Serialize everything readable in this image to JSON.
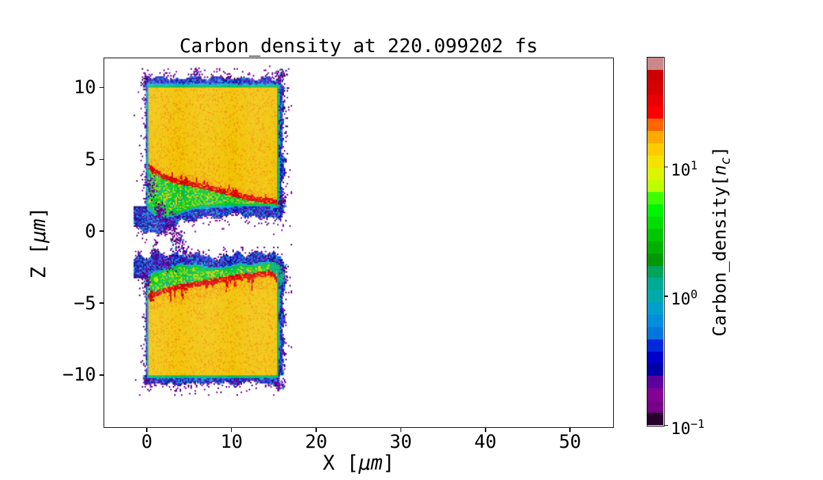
{
  "title": "Carbon_density at 220.099202 fs",
  "axes": {
    "xlabel_prefix": "X [",
    "xlabel_unit": "μm",
    "xlabel_suffix": "]",
    "ylabel_prefix": "Z [",
    "ylabel_unit": "μm",
    "ylabel_suffix": "]",
    "xlim": [
      -5,
      55.05
    ],
    "ylim": [
      -13.6,
      12.0
    ],
    "xticks": [
      {
        "value": 0,
        "label": "0"
      },
      {
        "value": 10,
        "label": "10"
      },
      {
        "value": 20,
        "label": "20"
      },
      {
        "value": 30,
        "label": "30"
      },
      {
        "value": 40,
        "label": "40"
      },
      {
        "value": 50,
        "label": "50"
      }
    ],
    "yticks": [
      {
        "value": 10,
        "label": "10"
      },
      {
        "value": 5,
        "label": "5"
      },
      {
        "value": 0,
        "label": "0"
      },
      {
        "value": -5,
        "label": "−5"
      },
      {
        "value": -10,
        "label": "−10"
      }
    ]
  },
  "colorbar": {
    "label_prefix": "Carbon_density[",
    "label_var": "n",
    "label_sub": "c",
    "label_suffix": "]",
    "scale": "log",
    "vmin_nc": 0.1,
    "vmax_nc": 70,
    "bands": 30,
    "ticks": [
      {
        "value": 10,
        "base": "10",
        "exp": "1"
      },
      {
        "value": 1,
        "base": "10",
        "exp": "0"
      },
      {
        "value": 0.1,
        "base": "10",
        "exp": "−1"
      }
    ],
    "colormap_name": "nipy_spectral",
    "colormap_stops": [
      [
        0.0,
        [
          0,
          0,
          0
        ]
      ],
      [
        0.05,
        [
          119,
          0,
          136
        ]
      ],
      [
        0.1,
        [
          136,
          0,
          153
        ]
      ],
      [
        0.15,
        [
          0,
          0,
          170
        ]
      ],
      [
        0.2,
        [
          0,
          0,
          221
        ]
      ],
      [
        0.25,
        [
          0,
          119,
          221
        ]
      ],
      [
        0.3,
        [
          0,
          153,
          221
        ]
      ],
      [
        0.35,
        [
          0,
          170,
          170
        ]
      ],
      [
        0.4,
        [
          0,
          170,
          136
        ]
      ],
      [
        0.45,
        [
          0,
          153,
          0
        ]
      ],
      [
        0.5,
        [
          0,
          187,
          0
        ]
      ],
      [
        0.55,
        [
          0,
          221,
          0
        ]
      ],
      [
        0.6,
        [
          0,
          255,
          0
        ]
      ],
      [
        0.65,
        [
          187,
          255,
          0
        ]
      ],
      [
        0.7,
        [
          238,
          238,
          0
        ]
      ],
      [
        0.75,
        [
          255,
          204,
          0
        ]
      ],
      [
        0.8,
        [
          255,
          153,
          0
        ]
      ],
      [
        0.85,
        [
          255,
          0,
          0
        ]
      ],
      [
        0.9,
        [
          221,
          0,
          0
        ]
      ],
      [
        0.95,
        [
          204,
          0,
          0
        ]
      ],
      [
        1.0,
        [
          204,
          204,
          204
        ]
      ]
    ]
  },
  "chart_data": {
    "type": "heatmap",
    "title": "Carbon_density at 220.099202 fs",
    "xlabel": "X [μm]",
    "ylabel": "Z [μm]",
    "xlim": [
      -5,
      55.05
    ],
    "ylim": [
      -13.6,
      12.0
    ],
    "value_scale": "log",
    "value_range_nc": [
      0.1,
      70
    ],
    "core_density_nc": 14,
    "structures": [
      {
        "name": "upper-slab",
        "xl": 0.25,
        "xr": 15.45,
        "back_z": 10.0,
        "front": "bottom",
        "streak": [
          [
            0.3,
            4.5
          ],
          [
            1,
            4.15
          ],
          [
            2,
            3.8
          ],
          [
            3,
            3.55
          ],
          [
            4,
            3.4
          ],
          [
            5,
            3.3
          ],
          [
            6,
            3.18
          ],
          [
            7,
            3.05
          ],
          [
            8,
            2.9
          ],
          [
            9,
            2.75
          ],
          [
            10,
            2.6
          ],
          [
            11,
            2.45
          ],
          [
            12,
            2.3
          ],
          [
            13,
            2.2
          ],
          [
            14,
            2.1
          ],
          [
            14.8,
            2.05
          ],
          [
            15.4,
            2.0
          ]
        ],
        "boundary": [
          [
            0.3,
            1.7
          ],
          [
            0.8,
            1.4
          ],
          [
            1.5,
            1.15
          ],
          [
            2.5,
            1.1
          ],
          [
            3.5,
            1.3
          ],
          [
            4.5,
            1.55
          ],
          [
            5.5,
            1.7
          ],
          [
            6.5,
            1.8
          ],
          [
            8,
            1.85
          ],
          [
            10,
            1.9
          ],
          [
            12,
            1.95
          ],
          [
            14,
            1.95
          ],
          [
            15.4,
            1.85
          ]
        ],
        "bright_spot": [
          1.4,
          1.85,
          0.5
        ]
      },
      {
        "name": "lower-slab",
        "xl": 0.25,
        "xr": 15.45,
        "back_z": -10.0,
        "front": "top",
        "streak": [
          [
            0.3,
            -4.55
          ],
          [
            0.8,
            -4.45
          ],
          [
            1.5,
            -4.25
          ],
          [
            2.5,
            -4.05
          ],
          [
            3.5,
            -3.9
          ],
          [
            4.5,
            -3.8
          ],
          [
            5.5,
            -3.7
          ],
          [
            6.5,
            -3.6
          ],
          [
            7.5,
            -3.5
          ],
          [
            8.5,
            -3.4
          ],
          [
            9.5,
            -3.3
          ],
          [
            10.5,
            -3.2
          ],
          [
            11.5,
            -3.12
          ],
          [
            12.5,
            -3.05
          ],
          [
            13.5,
            -3.0
          ],
          [
            14.5,
            -2.92
          ],
          [
            15.0,
            -3.0
          ],
          [
            15.4,
            -3.4
          ]
        ],
        "boundary": [
          [
            0.3,
            -3.3
          ],
          [
            1,
            -3.0
          ],
          [
            2,
            -2.9
          ],
          [
            3,
            -2.6
          ],
          [
            4,
            -2.45
          ],
          [
            5,
            -2.6
          ],
          [
            6,
            -2.5
          ],
          [
            7,
            -2.7
          ],
          [
            8,
            -2.75
          ],
          [
            9,
            -2.7
          ],
          [
            10,
            -2.6
          ],
          [
            11,
            -2.45
          ],
          [
            12,
            -2.55
          ],
          [
            13,
            -2.5
          ],
          [
            14,
            -2.35
          ],
          [
            15,
            -2.4
          ],
          [
            15.5,
            -2.8
          ]
        ],
        "bright_spot": [
          1.1,
          -3.35,
          0.5
        ]
      }
    ],
    "sprays": [
      {
        "cx": 1.6,
        "cz": 1.35,
        "rx": 0.8,
        "rz": 0.75,
        "n": 70,
        "palette": "purple"
      },
      {
        "cx": 2.7,
        "cz": 0.45,
        "rx": 1.1,
        "rz": 0.95,
        "n": 95,
        "palette": "purple"
      },
      {
        "cx": 3.7,
        "cz": -0.6,
        "rx": 1.2,
        "rz": 0.85,
        "n": 75,
        "palette": "purple"
      },
      {
        "cx": 4.7,
        "cz": -1.55,
        "rx": 1.1,
        "rz": 0.6,
        "n": 45,
        "palette": "purple"
      },
      {
        "cx": 2.3,
        "cz": -2.3,
        "rx": 1.3,
        "rz": 0.7,
        "n": 55,
        "palette": "purple"
      },
      {
        "cx": 1.0,
        "cz": -1.5,
        "rx": 0.5,
        "rz": 0.9,
        "n": 30,
        "palette": "purple"
      },
      {
        "cx": 0.5,
        "cz": 3.1,
        "rx": 0.8,
        "rz": 1.1,
        "n": 55,
        "palette": "purple"
      },
      {
        "cx": -0.1,
        "cz": -3.3,
        "rx": 0.8,
        "rz": 1.1,
        "n": 60,
        "palette": "purple"
      },
      {
        "cx": 5.9,
        "cz": 10.9,
        "rx": 0.6,
        "rz": 0.5,
        "n": 22,
        "palette": "purple"
      },
      {
        "cx": 9.8,
        "cz": 10.7,
        "rx": 0.4,
        "rz": 0.3,
        "n": 12,
        "palette": "purple"
      },
      {
        "cx": 15.9,
        "cz": 10.8,
        "rx": 0.8,
        "rz": 0.55,
        "n": 50,
        "palette": "purple"
      },
      {
        "cx": -0.05,
        "cz": 10.55,
        "rx": 0.45,
        "rz": 0.4,
        "n": 22,
        "palette": "purple"
      },
      {
        "cx": 10.5,
        "cz": -10.55,
        "rx": 0.7,
        "rz": 0.35,
        "n": 26,
        "palette": "purple"
      },
      {
        "cx": 15.7,
        "cz": -10.75,
        "rx": 0.8,
        "rz": 0.5,
        "n": 50,
        "palette": "purple"
      },
      {
        "cx": 0.0,
        "cz": -10.5,
        "rx": 0.5,
        "rz": 0.35,
        "n": 20,
        "palette": "purple"
      },
      {
        "cx": 16.3,
        "cz": -2.8,
        "rx": 0.6,
        "rz": 0.7,
        "n": 40,
        "palette": "purple"
      },
      {
        "cx": 16.0,
        "cz": 2.1,
        "rx": 0.55,
        "rz": 0.55,
        "n": 30,
        "palette": "purple"
      },
      {
        "cx": 15.3,
        "cz": -2.55,
        "rx": 0.8,
        "rz": 0.45,
        "n": 90,
        "palette": "teal"
      },
      {
        "cx": 15.9,
        "cz": -3.3,
        "rx": 0.45,
        "rz": 0.6,
        "n": 45,
        "palette": "teal"
      },
      {
        "cx": 0.55,
        "cz": -4.55,
        "rx": 0.35,
        "rz": 0.45,
        "n": 35,
        "palette": "red"
      },
      {
        "cx": 0.7,
        "cz": 4.25,
        "rx": 0.35,
        "rz": 0.3,
        "n": 22,
        "palette": "red"
      }
    ]
  }
}
